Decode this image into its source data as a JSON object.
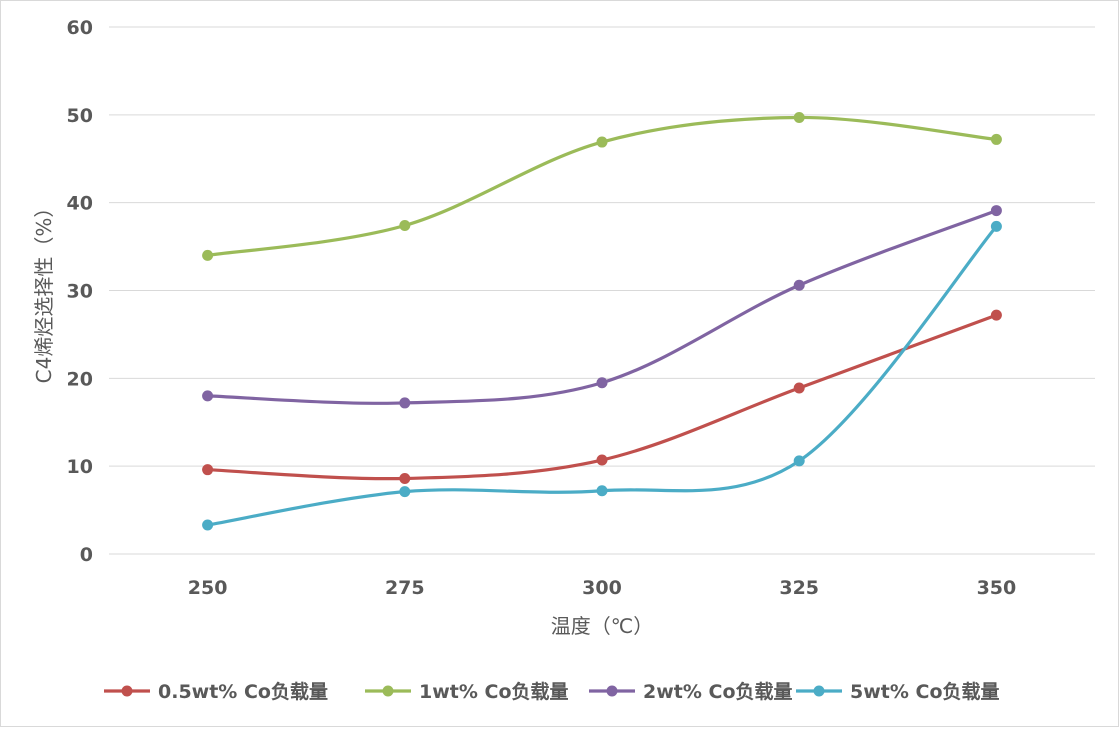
{
  "chart_data": {
    "type": "line",
    "smooth": true,
    "x": [
      "250",
      "275",
      "300",
      "325",
      "350"
    ],
    "xlabel": "温度（℃）",
    "ylabel": "C4烯烃选择性（%）",
    "ylim": [
      0,
      60
    ],
    "yticks": [
      "0",
      "10",
      "20",
      "30",
      "40",
      "50",
      "60"
    ],
    "grid": true,
    "legend_position": "bottom",
    "series": [
      {
        "name": "0.5wt% Co负载量",
        "color": "#c0504d",
        "values": [
          9.6,
          8.6,
          10.7,
          18.9,
          27.2
        ]
      },
      {
        "name": "1wt% Co负载量",
        "color": "#9bbb59",
        "values": [
          34.0,
          37.4,
          46.9,
          49.7,
          47.2
        ]
      },
      {
        "name": "2wt% Co负载量",
        "color": "#8064a2",
        "values": [
          18.0,
          17.2,
          19.5,
          30.6,
          39.1
        ]
      },
      {
        "name": "5wt% Co负载量",
        "color": "#4bacc6",
        "values": [
          3.3,
          7.1,
          7.2,
          10.6,
          37.3
        ]
      }
    ]
  }
}
